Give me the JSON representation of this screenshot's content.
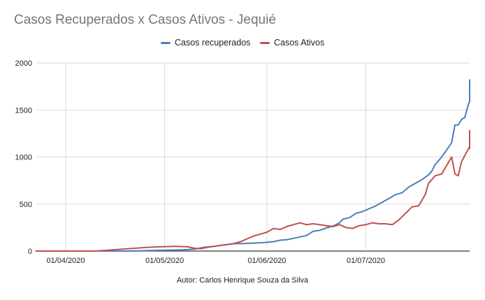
{
  "chart_data": {
    "type": "line",
    "title": "Casos Recuperados x Casos Ativos - Jequié",
    "caption": "Autor: Carlos Henrique Souza da Silva",
    "ylim": [
      0,
      2000
    ],
    "y_ticks": [
      "0",
      "500",
      "1000",
      "1500",
      "2000"
    ],
    "x_range": [
      "2020-03-23",
      "2020-07-31"
    ],
    "x_ticks": [
      {
        "date": "2020-04-01",
        "label": "01/04/2020"
      },
      {
        "date": "2020-05-01",
        "label": "01/05/2020"
      },
      {
        "date": "2020-06-01",
        "label": "01/06/2020"
      },
      {
        "date": "2020-07-01",
        "label": "01/07/2020"
      }
    ],
    "grid": "vertical",
    "legend_position": "top",
    "series": [
      {
        "name": "Casos recuperados",
        "color": "#4a7ebb",
        "points": [
          [
            "2020-03-23",
            0
          ],
          [
            "2020-04-20",
            0
          ],
          [
            "2020-04-30",
            8
          ],
          [
            "2020-05-06",
            12
          ],
          [
            "2020-05-10",
            20
          ],
          [
            "2020-05-13",
            40
          ],
          [
            "2020-05-16",
            50
          ],
          [
            "2020-05-19",
            65
          ],
          [
            "2020-05-22",
            78
          ],
          [
            "2020-05-25",
            80
          ],
          [
            "2020-05-28",
            85
          ],
          [
            "2020-05-31",
            90
          ],
          [
            "2020-06-03",
            100
          ],
          [
            "2020-06-05",
            115
          ],
          [
            "2020-06-07",
            120
          ],
          [
            "2020-06-09",
            135
          ],
          [
            "2020-06-11",
            150
          ],
          [
            "2020-06-13",
            165
          ],
          [
            "2020-06-15",
            210
          ],
          [
            "2020-06-17",
            220
          ],
          [
            "2020-06-19",
            245
          ],
          [
            "2020-06-21",
            265
          ],
          [
            "2020-06-23",
            300
          ],
          [
            "2020-06-24",
            340
          ],
          [
            "2020-06-26",
            355
          ],
          [
            "2020-06-28",
            400
          ],
          [
            "2020-06-30",
            420
          ],
          [
            "2020-07-02",
            450
          ],
          [
            "2020-07-04",
            480
          ],
          [
            "2020-07-06",
            520
          ],
          [
            "2020-07-08",
            560
          ],
          [
            "2020-07-10",
            600
          ],
          [
            "2020-07-12",
            620
          ],
          [
            "2020-07-14",
            680
          ],
          [
            "2020-07-16",
            720
          ],
          [
            "2020-07-18",
            760
          ],
          [
            "2020-07-20",
            810
          ],
          [
            "2020-07-21",
            850
          ],
          [
            "2020-07-22",
            920
          ],
          [
            "2020-07-24",
            1000
          ],
          [
            "2020-07-26",
            1100
          ],
          [
            "2020-07-27",
            1150
          ],
          [
            "2020-07-28",
            1340
          ],
          [
            "2020-07-29",
            1340
          ],
          [
            "2020-07-30",
            1400
          ],
          [
            "2020-07-31",
            1420
          ],
          [
            "2020-08-01",
            1550
          ],
          [
            "2020-08-02",
            1590
          ],
          [
            "2020-08-04",
            1590
          ],
          [
            "2020-08-05",
            1700
          ],
          [
            "2020-08-07",
            1760
          ],
          [
            "2020-08-08",
            1820
          ]
        ]
      },
      {
        "name": "Casos Ativos",
        "color": "#c0504d",
        "points": [
          [
            "2020-03-23",
            0
          ],
          [
            "2020-04-10",
            0
          ],
          [
            "2020-04-14",
            10
          ],
          [
            "2020-04-18",
            20
          ],
          [
            "2020-04-22",
            30
          ],
          [
            "2020-04-26",
            40
          ],
          [
            "2020-04-30",
            45
          ],
          [
            "2020-05-04",
            50
          ],
          [
            "2020-05-08",
            45
          ],
          [
            "2020-05-10",
            30
          ],
          [
            "2020-05-12",
            25
          ],
          [
            "2020-05-14",
            40
          ],
          [
            "2020-05-16",
            50
          ],
          [
            "2020-05-18",
            60
          ],
          [
            "2020-05-20",
            70
          ],
          [
            "2020-05-22",
            80
          ],
          [
            "2020-05-24",
            100
          ],
          [
            "2020-05-26",
            130
          ],
          [
            "2020-05-28",
            160
          ],
          [
            "2020-05-30",
            180
          ],
          [
            "2020-06-01",
            200
          ],
          [
            "2020-06-03",
            240
          ],
          [
            "2020-06-05",
            230
          ],
          [
            "2020-06-07",
            260
          ],
          [
            "2020-06-09",
            280
          ],
          [
            "2020-06-11",
            300
          ],
          [
            "2020-06-13",
            280
          ],
          [
            "2020-06-15",
            290
          ],
          [
            "2020-06-17",
            280
          ],
          [
            "2020-06-19",
            270
          ],
          [
            "2020-06-21",
            260
          ],
          [
            "2020-06-23",
            280
          ],
          [
            "2020-06-25",
            250
          ],
          [
            "2020-06-27",
            240
          ],
          [
            "2020-06-29",
            270
          ],
          [
            "2020-07-01",
            280
          ],
          [
            "2020-07-03",
            300
          ],
          [
            "2020-07-05",
            290
          ],
          [
            "2020-07-07",
            290
          ],
          [
            "2020-07-09",
            280
          ],
          [
            "2020-07-11",
            330
          ],
          [
            "2020-07-13",
            400
          ],
          [
            "2020-07-15",
            470
          ],
          [
            "2020-07-17",
            480
          ],
          [
            "2020-07-19",
            600
          ],
          [
            "2020-07-20",
            720
          ],
          [
            "2020-07-22",
            800
          ],
          [
            "2020-07-24",
            820
          ],
          [
            "2020-07-25",
            880
          ],
          [
            "2020-07-27",
            1000
          ],
          [
            "2020-07-28",
            820
          ],
          [
            "2020-07-29",
            800
          ],
          [
            "2020-07-30",
            950
          ],
          [
            "2020-08-01",
            1080
          ],
          [
            "2020-08-02",
            1110
          ],
          [
            "2020-08-03",
            1090
          ],
          [
            "2020-08-04",
            1100
          ],
          [
            "2020-08-05",
            1200
          ],
          [
            "2020-08-06",
            1230
          ],
          [
            "2020-08-07",
            1200
          ],
          [
            "2020-08-08",
            1280
          ]
        ]
      }
    ]
  }
}
